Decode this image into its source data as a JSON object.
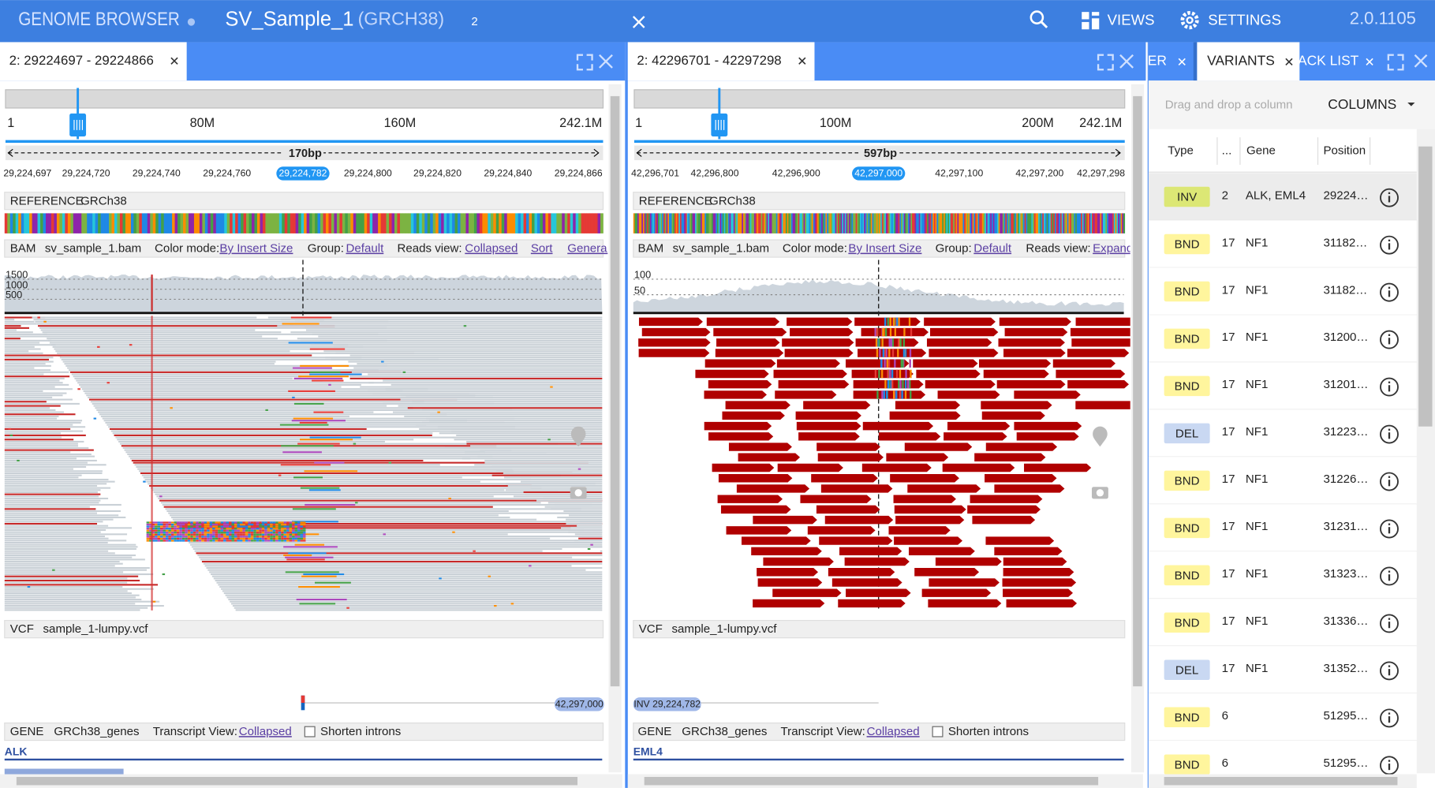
{
  "header": {
    "title": "GENOME BROWSER",
    "session": "SV_Sample_1",
    "genome": "(GRCH38)",
    "badge": "2",
    "views": "VIEWS",
    "settings": "SETTINGS",
    "version": "2.0.1105"
  },
  "panels": [
    {
      "tab": "2: 29224697 - 29224866",
      "ruler": {
        "labels": [
          "1",
          "80M",
          "160M",
          "242.1M"
        ],
        "width": "170bp",
        "ticks": [
          "29,224,697",
          "29,224,720",
          "29,224,740",
          "29,224,760",
          "29,224,800",
          "29,224,820",
          "29,224,840",
          "29,224,866"
        ],
        "cursor": "29,224,782"
      },
      "reference": {
        "label": "REFERENCE",
        "name": "GRCh38"
      },
      "bam": {
        "items": [
          {
            "text": "BAM"
          },
          {
            "text": "sv_sample_1.bam"
          },
          {
            "text": "Color mode:"
          },
          {
            "text": "By Insert Size",
            "link": true
          },
          {
            "text": "Group:"
          },
          {
            "text": "Default",
            "link": true
          },
          {
            "text": "Reads view:"
          },
          {
            "text": "Collapsed",
            "link": true
          },
          {
            "text": "Sort",
            "link": true
          },
          {
            "text": "General",
            "link": true
          }
        ],
        "coverage_ticks": [
          "1500",
          "1000",
          "500"
        ]
      },
      "vcf": {
        "label": "VCF",
        "file": "sample_1-lumpy.vcf",
        "marker": "42,297,000"
      },
      "gene": {
        "label": "GENE",
        "file": "GRCh38_genes",
        "transcript": "Transcript View:",
        "transcript_value": "Collapsed",
        "shorten": "Shorten introns",
        "gene_name": "ALK"
      }
    },
    {
      "tab": "2: 42296701 - 42297298",
      "ruler": {
        "labels": [
          "1",
          "100M",
          "200M",
          "242.1M"
        ],
        "width": "597bp",
        "ticks": [
          "42,296,701",
          "42,296,800",
          "42,296,900",
          "42,297,100",
          "42,297,200",
          "42,297,298"
        ],
        "cursor": "42,297,000"
      },
      "reference": {
        "label": "REFERENCE",
        "name": "GRCh38"
      },
      "bam": {
        "items": [
          {
            "text": "BAM"
          },
          {
            "text": "sv_sample_1.bam"
          },
          {
            "text": "Color mode:"
          },
          {
            "text": "By Insert Size",
            "link": true
          },
          {
            "text": "Group:"
          },
          {
            "text": "Default",
            "link": true
          },
          {
            "text": "Reads view:"
          },
          {
            "text": "Expanded",
            "link": true
          }
        ],
        "coverage_ticks": [
          "100",
          "50"
        ]
      },
      "vcf": {
        "label": "VCF",
        "file": "sample_1-lumpy.vcf",
        "marker": "INV 29,224,782"
      },
      "gene": {
        "label": "GENE",
        "file": "GRCh38_genes",
        "transcript": "Transcript View:",
        "transcript_value": "Collapsed",
        "shorten": "Shorten introns",
        "gene_name": "EML4"
      }
    }
  ],
  "variants_panel": {
    "tabs": [
      "ER",
      "VARIANTS",
      "ACK LIST"
    ],
    "drag_hint": "Drag and drop a column",
    "columns": "COLUMNS",
    "headers": [
      "Type",
      "...",
      "Gene",
      "Position"
    ],
    "rows": [
      {
        "type": "INV",
        "chr": "2",
        "gene": "ALK, EML4",
        "position": "29224…"
      },
      {
        "type": "BND",
        "chr": "17",
        "gene": "NF1",
        "position": "31182…"
      },
      {
        "type": "BND",
        "chr": "17",
        "gene": "NF1",
        "position": "31182…"
      },
      {
        "type": "BND",
        "chr": "17",
        "gene": "NF1",
        "position": "31200…"
      },
      {
        "type": "BND",
        "chr": "17",
        "gene": "NF1",
        "position": "31201…"
      },
      {
        "type": "DEL",
        "chr": "17",
        "gene": "NF1",
        "position": "31223…"
      },
      {
        "type": "BND",
        "chr": "17",
        "gene": "NF1",
        "position": "31226…"
      },
      {
        "type": "BND",
        "chr": "17",
        "gene": "NF1",
        "position": "31231…"
      },
      {
        "type": "BND",
        "chr": "17",
        "gene": "NF1",
        "position": "31323…"
      },
      {
        "type": "BND",
        "chr": "17",
        "gene": "NF1",
        "position": "31336…"
      },
      {
        "type": "DEL",
        "chr": "17",
        "gene": "NF1",
        "position": "31352…"
      },
      {
        "type": "BND",
        "chr": "6",
        "position": "51295…"
      },
      {
        "type": "BND",
        "chr": "6",
        "position": "51295…"
      }
    ]
  }
}
